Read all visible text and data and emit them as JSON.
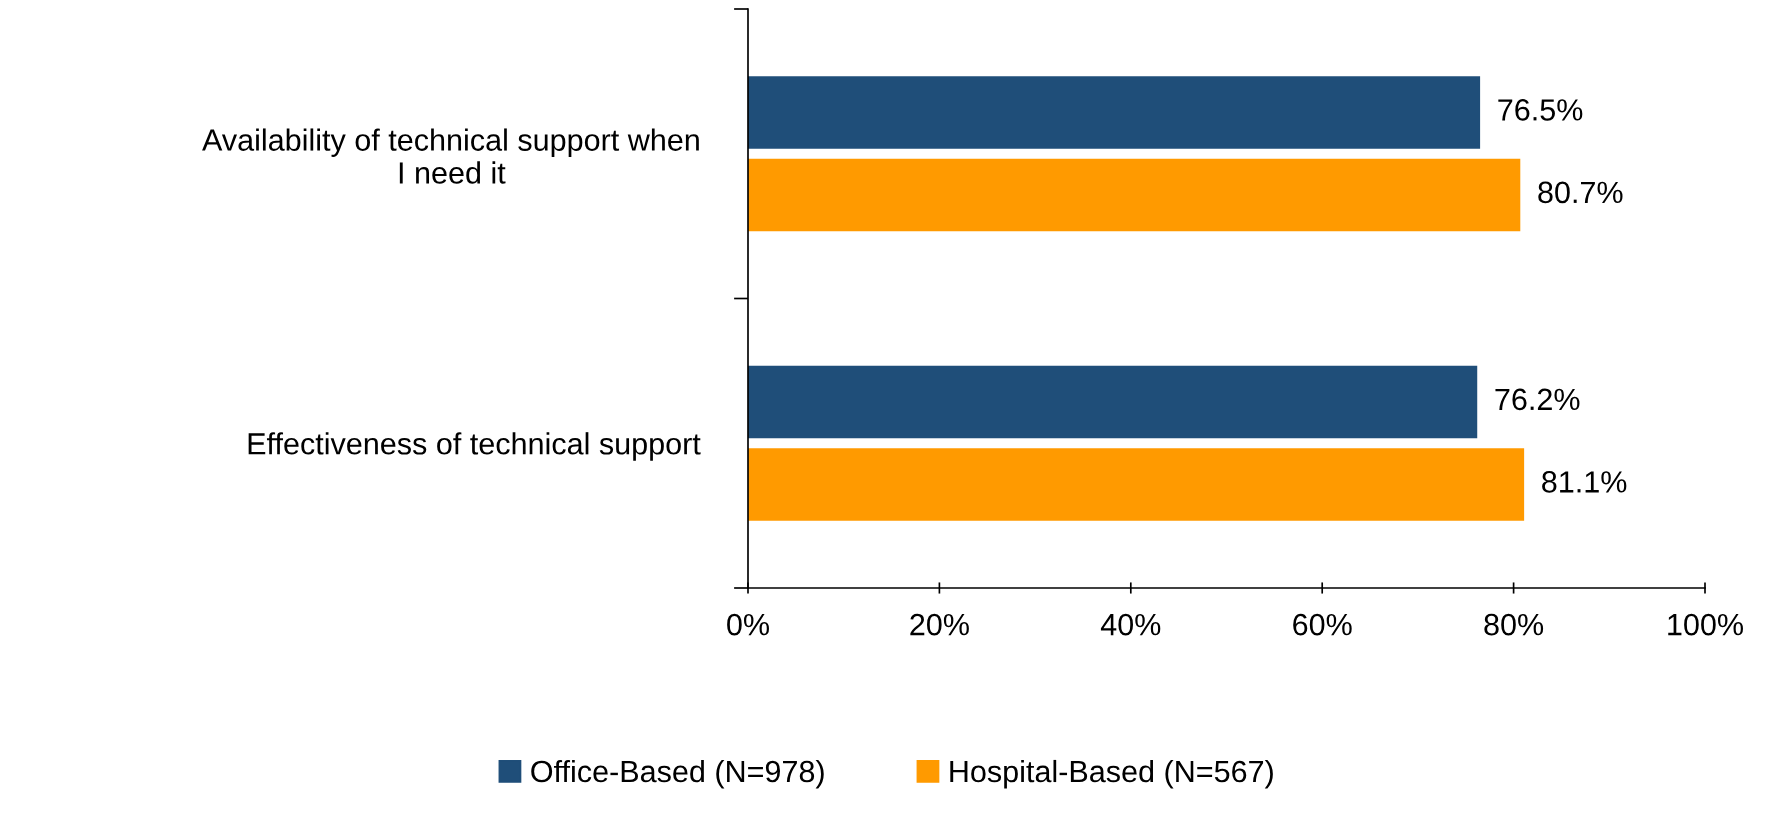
{
  "chart_data": {
    "type": "bar",
    "orientation": "horizontal",
    "categories": [
      "Availability of technical support when\nI need it",
      "Effectiveness of technical support"
    ],
    "series": [
      {
        "name": "Office-Based (N=978)",
        "color": "#1f4e79",
        "values": [
          76.5,
          76.2
        ],
        "value_labels": [
          "76.5%",
          "76.2%"
        ]
      },
      {
        "name": "Hospital-Based (N=567)",
        "color": "#ff9a00",
        "values": [
          80.7,
          81.1
        ],
        "value_labels": [
          "80.7%",
          "81.1%"
        ]
      }
    ],
    "xlim": [
      0,
      100
    ],
    "xticks": [
      {
        "value": 0,
        "label": "0%"
      },
      {
        "value": 20,
        "label": "20%"
      },
      {
        "value": 40,
        "label": "40%"
      },
      {
        "value": 60,
        "label": "60%"
      },
      {
        "value": 80,
        "label": "80%"
      },
      {
        "value": 100,
        "label": "100%"
      }
    ],
    "grid": false,
    "legend": "bottom"
  }
}
